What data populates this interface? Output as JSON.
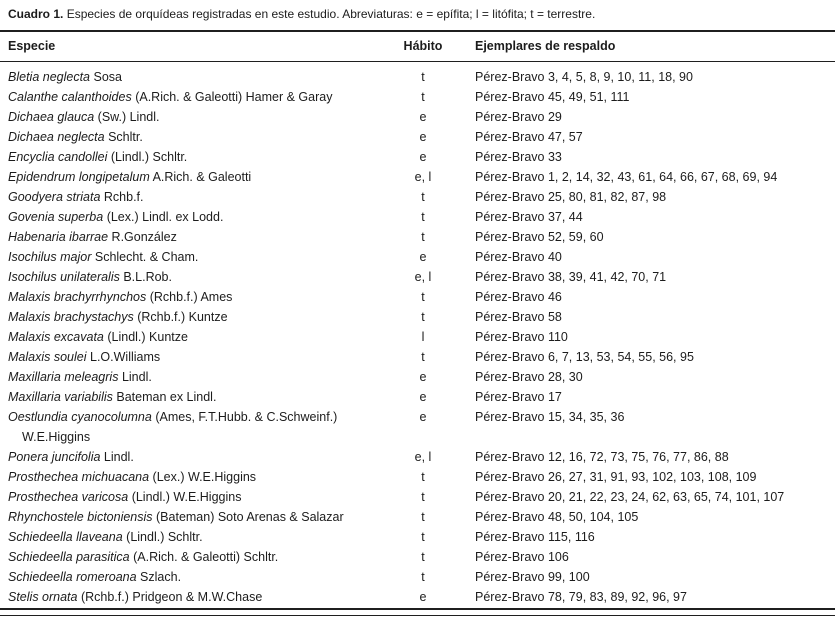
{
  "caption": {
    "label": "Cuadro 1.",
    "text": "Especies de orquídeas registradas en este estudio. Abreviaturas: e = epífita; l = litófita; t = terrestre."
  },
  "columns": {
    "species": "Especie",
    "habit": "Hábito",
    "vouchers": "Ejemplares de respaldo"
  },
  "rows": [
    {
      "species_italic": "Bletia neglecta",
      "species_author": "Sosa",
      "habit": "t",
      "vouchers": "Pérez-Bravo 3, 4, 5, 8, 9, 10, 11, 18, 90"
    },
    {
      "species_italic": "Calanthe calanthoides",
      "species_author": "(A.Rich. & Galeotti) Hamer & Garay",
      "habit": "t",
      "vouchers": "Pérez-Bravo 45, 49, 51, 111"
    },
    {
      "species_italic": "Dichaea glauca",
      "species_author": "(Sw.) Lindl.",
      "habit": "e",
      "vouchers": "Pérez-Bravo 29"
    },
    {
      "species_italic": "Dichaea neglecta",
      "species_author": "Schltr.",
      "habit": "e",
      "vouchers": "Pérez-Bravo 47, 57"
    },
    {
      "species_italic": "Encyclia candollei",
      "species_author": "(Lindl.) Schltr.",
      "habit": "e",
      "vouchers": "Pérez-Bravo 33"
    },
    {
      "species_italic": "Epidendrum longipetalum",
      "species_author": "A.Rich. & Galeotti",
      "habit": "e, l",
      "vouchers": "Pérez-Bravo 1, 2, 14, 32, 43, 61, 64, 66, 67, 68, 69, 94"
    },
    {
      "species_italic": "Goodyera striata",
      "species_author": "Rchb.f.",
      "habit": "t",
      "vouchers": "Pérez-Bravo 25, 80, 81, 82, 87, 98"
    },
    {
      "species_italic": "Govenia superba",
      "species_author": "(Lex.) Lindl. ex Lodd.",
      "habit": "t",
      "vouchers": "Pérez-Bravo 37, 44"
    },
    {
      "species_italic": "Habenaria ibarrae",
      "species_author": "R.González",
      "habit": "t",
      "vouchers": "Pérez-Bravo 52, 59, 60"
    },
    {
      "species_italic": "Isochilus major",
      "species_author": "Schlecht. & Cham.",
      "habit": "e",
      "vouchers": "Pérez-Bravo 40"
    },
    {
      "species_italic": "Isochilus unilateralis",
      "species_author": "B.L.Rob.",
      "habit": "e, l",
      "vouchers": "Pérez-Bravo 38, 39, 41, 42, 70, 71"
    },
    {
      "species_italic": "Malaxis brachyrrhynchos",
      "species_author": "(Rchb.f.) Ames",
      "habit": "t",
      "vouchers": "Pérez-Bravo 46"
    },
    {
      "species_italic": "Malaxis brachystachys",
      "species_author": "(Rchb.f.) Kuntze",
      "habit": "t",
      "vouchers": "Pérez-Bravo 58"
    },
    {
      "species_italic": "Malaxis excavata",
      "species_author": "(Lindl.) Kuntze",
      "habit": "l",
      "vouchers": "Pérez-Bravo 110"
    },
    {
      "species_italic": "Malaxis soulei",
      "species_author": "L.O.Williams",
      "habit": "t",
      "vouchers": "Pérez-Bravo 6, 7, 13, 53, 54, 55, 56, 95"
    },
    {
      "species_italic": "Maxillaria meleagris",
      "species_author": "Lindl.",
      "habit": "e",
      "vouchers": "Pérez-Bravo 28, 30"
    },
    {
      "species_italic": "Maxillaria variabilis",
      "species_author": "Bateman ex Lindl.",
      "habit": "e",
      "vouchers": "Pérez-Bravo 17"
    },
    {
      "species_italic": "Oestlundia cyanocolumna",
      "species_author": "(Ames, F.T.Hubb. & C.Schweinf.) W.E.Higgins",
      "habit": "e",
      "vouchers": "Pérez-Bravo 15, 34, 35, 36"
    },
    {
      "species_italic": "Ponera juncifolia",
      "species_author": "Lindl.",
      "habit": "e, l",
      "vouchers": "Pérez-Bravo 12, 16, 72, 73, 75, 76, 77, 86, 88"
    },
    {
      "species_italic": "Prosthechea michuacana",
      "species_author": "(Lex.) W.E.Higgins",
      "habit": "t",
      "vouchers": "Pérez-Bravo 26, 27, 31, 91, 93, 102, 103, 108, 109"
    },
    {
      "species_italic": "Prosthechea varicosa",
      "species_author": "(Lindl.) W.E.Higgins",
      "habit": "t",
      "vouchers": "Pérez-Bravo 20, 21, 22, 23, 24, 62, 63, 65, 74, 101, 107"
    },
    {
      "species_italic": "Rhynchostele bictoniensis",
      "species_author": "(Bateman) Soto Arenas & Salazar",
      "habit": "t",
      "vouchers": "Pérez-Bravo 48, 50, 104, 105"
    },
    {
      "species_italic": "Schiedeella llaveana",
      "species_author": "(Lindl.) Schltr.",
      "habit": "t",
      "vouchers": "Pérez-Bravo 115, 116"
    },
    {
      "species_italic": "Schiedeella parasitica",
      "species_author": "(A.Rich. & Galeotti) Schltr.",
      "habit": "t",
      "vouchers": "Pérez-Bravo 106"
    },
    {
      "species_italic": "Schiedeella romeroana",
      "species_author": "Szlach.",
      "habit": "t",
      "vouchers": "Pérez-Bravo 99, 100"
    },
    {
      "species_italic": "Stelis ornata",
      "species_author": "(Rchb.f.) Pridgeon & M.W.Chase",
      "habit": "e",
      "vouchers": "Pérez-Bravo 78, 79, 83, 89, 92, 96, 97"
    }
  ]
}
